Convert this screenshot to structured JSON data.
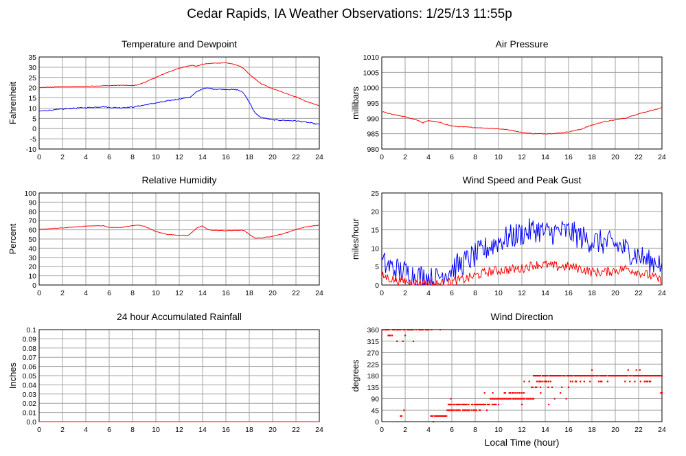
{
  "page_title": "Cedar Rapids, IA Weather Observations: 1/25/13 11:55p",
  "xlabel": "Local Time (hour)",
  "colors": {
    "red": "#ff0000",
    "blue": "#0000ff",
    "grid": "#a0a0a0"
  },
  "chart_data": [
    {
      "id": "temp",
      "type": "line",
      "title": "Temperature and Dewpoint",
      "ylabel": "Fahrenheit",
      "xlim": [
        0,
        24
      ],
      "ylim": [
        -10,
        35
      ],
      "xticks": [
        0,
        2,
        4,
        6,
        8,
        10,
        12,
        14,
        16,
        18,
        20,
        22,
        24
      ],
      "yticks": [
        -10,
        -5,
        0,
        5,
        10,
        15,
        20,
        25,
        30,
        35
      ],
      "grid": true,
      "series": [
        {
          "color": "#ff0000",
          "noise": 0.15,
          "x": [
            0,
            2,
            4,
            6,
            7,
            8,
            8.5,
            9,
            10,
            11,
            12,
            13,
            13.5,
            14,
            15,
            16,
            17,
            17.5,
            18,
            19,
            20,
            21,
            22,
            23,
            24
          ],
          "y": [
            20,
            20.5,
            20.7,
            21,
            21.2,
            21,
            21.5,
            22.5,
            25,
            27.5,
            29.5,
            31,
            30.5,
            31.5,
            32,
            32.2,
            31,
            29.5,
            26.5,
            22,
            19.5,
            17.5,
            15.5,
            13,
            11.2
          ]
        },
        {
          "color": "#0000ff",
          "noise": 0.25,
          "x": [
            0,
            1,
            2,
            3,
            4,
            5,
            5.5,
            6,
            7,
            8,
            9,
            10,
            11,
            12,
            13,
            13.5,
            14,
            14.5,
            15,
            16,
            17,
            17.5,
            18,
            18.5,
            19,
            20,
            21,
            22,
            23,
            24
          ],
          "y": [
            8.5,
            9,
            9.5,
            10,
            10.2,
            10.5,
            10.8,
            10.3,
            10.2,
            10.5,
            11.5,
            12.5,
            13.5,
            14.5,
            15.5,
            18,
            19.5,
            19.8,
            19.3,
            19.2,
            19,
            17.5,
            13,
            7.5,
            5.5,
            4.3,
            4,
            3.8,
            3,
            2
          ]
        }
      ]
    },
    {
      "id": "pressure",
      "type": "line",
      "title": "Air Pressure",
      "ylabel": "millibars",
      "xlim": [
        0,
        24
      ],
      "ylim": [
        980,
        1010
      ],
      "xticks": [
        0,
        2,
        4,
        6,
        8,
        10,
        12,
        14,
        16,
        18,
        20,
        22,
        24
      ],
      "yticks": [
        980,
        985,
        990,
        995,
        1000,
        1005,
        1010
      ],
      "grid": true,
      "series": [
        {
          "color": "#ff0000",
          "noise": 0.12,
          "x": [
            0,
            1,
            2,
            3,
            3.5,
            4,
            5,
            6,
            7,
            8,
            9,
            10,
            11,
            12,
            13,
            14,
            15,
            16,
            17,
            18,
            19,
            20,
            21,
            22,
            23,
            24
          ],
          "y": [
            992.2,
            991.2,
            990.5,
            989.5,
            988.5,
            989.3,
            988.6,
            987.5,
            987.2,
            987,
            986.8,
            986.6,
            986.2,
            985.4,
            985,
            985,
            985.1,
            985.6,
            986.4,
            987.8,
            988.9,
            989.5,
            990.2,
            991.5,
            992.5,
            993.4
          ]
        }
      ]
    },
    {
      "id": "humidity",
      "type": "line",
      "title": "Relative Humidity",
      "ylabel": "Percent",
      "xlim": [
        0,
        24
      ],
      "ylim": [
        0,
        100
      ],
      "xticks": [
        0,
        2,
        4,
        6,
        8,
        10,
        12,
        14,
        16,
        18,
        20,
        22,
        24
      ],
      "yticks": [
        0,
        10,
        20,
        30,
        40,
        50,
        60,
        70,
        80,
        90,
        100
      ],
      "grid": true,
      "series": [
        {
          "color": "#ff0000",
          "noise": 0.3,
          "x": [
            0,
            2,
            4,
            5.5,
            6,
            7,
            8,
            8.5,
            9,
            9.5,
            10,
            11,
            12,
            12.8,
            13.5,
            14,
            14.5,
            15,
            16,
            17,
            17.5,
            18,
            18.5,
            19,
            20,
            21,
            22,
            23,
            24
          ],
          "y": [
            60.5,
            62,
            64,
            64.5,
            62.5,
            62.5,
            64.5,
            65,
            64,
            61,
            58,
            55,
            54,
            54,
            62,
            64,
            60,
            59.5,
            59,
            59.5,
            59.5,
            55,
            51,
            51,
            53,
            56,
            60.5,
            63.5,
            65
          ]
        }
      ]
    },
    {
      "id": "wind",
      "type": "line",
      "title": "Wind Speed and Peak Gust",
      "ylabel": "miles/hour",
      "xlim": [
        0,
        24
      ],
      "ylim": [
        0,
        25
      ],
      "xticks": [
        0,
        2,
        4,
        6,
        8,
        10,
        12,
        14,
        16,
        18,
        20,
        22,
        24
      ],
      "yticks": [
        0,
        5,
        10,
        15,
        20,
        25
      ],
      "grid": true,
      "series": [
        {
          "color": "#0000ff",
          "noise": 3.5,
          "floor": 0,
          "x": [
            0,
            1,
            2,
            3,
            4,
            4.5,
            5,
            6,
            7,
            8,
            9,
            10,
            11,
            12,
            13,
            13.5,
            14,
            15,
            16,
            17,
            18,
            19,
            20,
            21,
            22,
            23,
            23.7,
            24
          ],
          "y": [
            6,
            4.5,
            3.5,
            2.5,
            2,
            1,
            2.5,
            4.5,
            6,
            8,
            10,
            12,
            13,
            14,
            15,
            15,
            14,
            14.5,
            14.5,
            13,
            12,
            11.5,
            11,
            9.5,
            8,
            6,
            7,
            3
          ]
        },
        {
          "color": "#ff0000",
          "noise": 1.3,
          "floor": 0,
          "x": [
            0,
            1,
            2,
            3,
            4,
            5,
            6,
            7,
            8,
            9,
            10,
            11,
            12,
            13,
            14,
            15,
            16,
            17,
            18,
            19,
            20,
            21,
            22,
            23,
            24
          ],
          "y": [
            2.5,
            1.5,
            1,
            0.5,
            0.3,
            0.3,
            0.8,
            1.5,
            2.5,
            3.5,
            4,
            4.2,
            4.5,
            5.5,
            5.5,
            5,
            5,
            4.5,
            3.5,
            3.5,
            4,
            4.5,
            3.5,
            2.5,
            1
          ]
        }
      ]
    },
    {
      "id": "rain",
      "type": "line",
      "title": "24 hour Accumulated Rainfall",
      "ylabel": "Inches",
      "xlim": [
        0,
        24
      ],
      "ylim": [
        0,
        0.1
      ],
      "xticks": [
        0,
        2,
        4,
        6,
        8,
        10,
        12,
        14,
        16,
        18,
        20,
        22,
        24
      ],
      "yticks": [
        0.0,
        0.01,
        0.02,
        0.03,
        0.04,
        0.05,
        0.06,
        0.07,
        0.08,
        0.09,
        0.1
      ],
      "ytick_labels": [
        "0.0",
        "0.01",
        "0.02",
        "0.03",
        "0.04",
        "0.05",
        "0.06",
        "0.07",
        "0.08",
        "0.09",
        "0.1"
      ],
      "grid": true,
      "series": [
        {
          "color": "#ff0000",
          "noise": 0,
          "x": [
            0,
            24
          ],
          "y": [
            0,
            0
          ]
        }
      ]
    },
    {
      "id": "direction",
      "type": "scatter",
      "title": "Wind Direction",
      "ylabel": "degrees",
      "xlim": [
        0,
        24
      ],
      "ylim": [
        0,
        360
      ],
      "xticks": [
        0,
        2,
        4,
        6,
        8,
        10,
        12,
        14,
        16,
        18,
        20,
        22,
        24
      ],
      "yticks": [
        0,
        45,
        90,
        135,
        180,
        225,
        270,
        315,
        360
      ],
      "grid": true,
      "segments": [
        {
          "color": "#ff0000",
          "x0": 0.1,
          "x1": 4.3,
          "y": 360,
          "density": 0.7
        },
        {
          "color": "#ff0000",
          "x0": 0.3,
          "x1": 0.9,
          "y": 337.5,
          "density": 0.8
        },
        {
          "color": "#ff0000",
          "x0": 4.2,
          "x1": 5.6,
          "y": 22.5,
          "density": 0.9
        },
        {
          "color": "#ff0000",
          "x0": 5.6,
          "x1": 8.5,
          "y": 45,
          "density": 0.7
        },
        {
          "color": "#ff0000",
          "x0": 5.7,
          "x1": 9.8,
          "y": 67.5,
          "density": 0.8
        },
        {
          "color": "#ff0000",
          "x0": 8.0,
          "x1": 9.2,
          "y": 45,
          "density": 0.3
        },
        {
          "color": "#ff0000",
          "x0": 9.3,
          "x1": 13.0,
          "y": 90,
          "density": 0.85
        },
        {
          "color": "#ff0000",
          "x0": 10.5,
          "x1": 12.3,
          "y": 112.5,
          "density": 0.6
        },
        {
          "color": "#ff0000",
          "x0": 12.2,
          "x1": 14.5,
          "y": 157.5,
          "density": 0.45
        },
        {
          "color": "#ff0000",
          "x0": 12.5,
          "x1": 15.5,
          "y": 135,
          "density": 0.3
        },
        {
          "color": "#ff0000",
          "x0": 13.0,
          "x1": 24.0,
          "y": 180,
          "density": 0.95
        },
        {
          "color": "#ff0000",
          "x0": 15.5,
          "x1": 23.0,
          "y": 157.5,
          "density": 0.15
        }
      ],
      "points": [
        [
          1.6,
          22.5
        ],
        [
          1.7,
          22.5
        ],
        [
          1.9,
          45
        ],
        [
          2.0,
          337.5
        ],
        [
          1.8,
          315
        ],
        [
          1.3,
          315
        ],
        [
          2.7,
          315
        ],
        [
          5.0,
          360
        ],
        [
          4.4,
          0
        ],
        [
          5.9,
          90
        ],
        [
          7.5,
          45
        ],
        [
          8.8,
          112.5
        ],
        [
          9.5,
          112.5
        ],
        [
          10.0,
          67.5
        ],
        [
          12.0,
          67.5
        ],
        [
          13.0,
          90
        ],
        [
          13.6,
          112.5
        ],
        [
          14.3,
          67.5
        ],
        [
          14.8,
          90
        ],
        [
          15.3,
          112.5
        ],
        [
          15.8,
          90
        ],
        [
          16.0,
          135
        ],
        [
          18.0,
          202.5
        ],
        [
          21.1,
          202.5
        ],
        [
          21.8,
          202.5
        ],
        [
          22.1,
          202.5
        ],
        [
          23.9,
          112.5
        ],
        [
          24.0,
          112.5
        ]
      ]
    }
  ]
}
